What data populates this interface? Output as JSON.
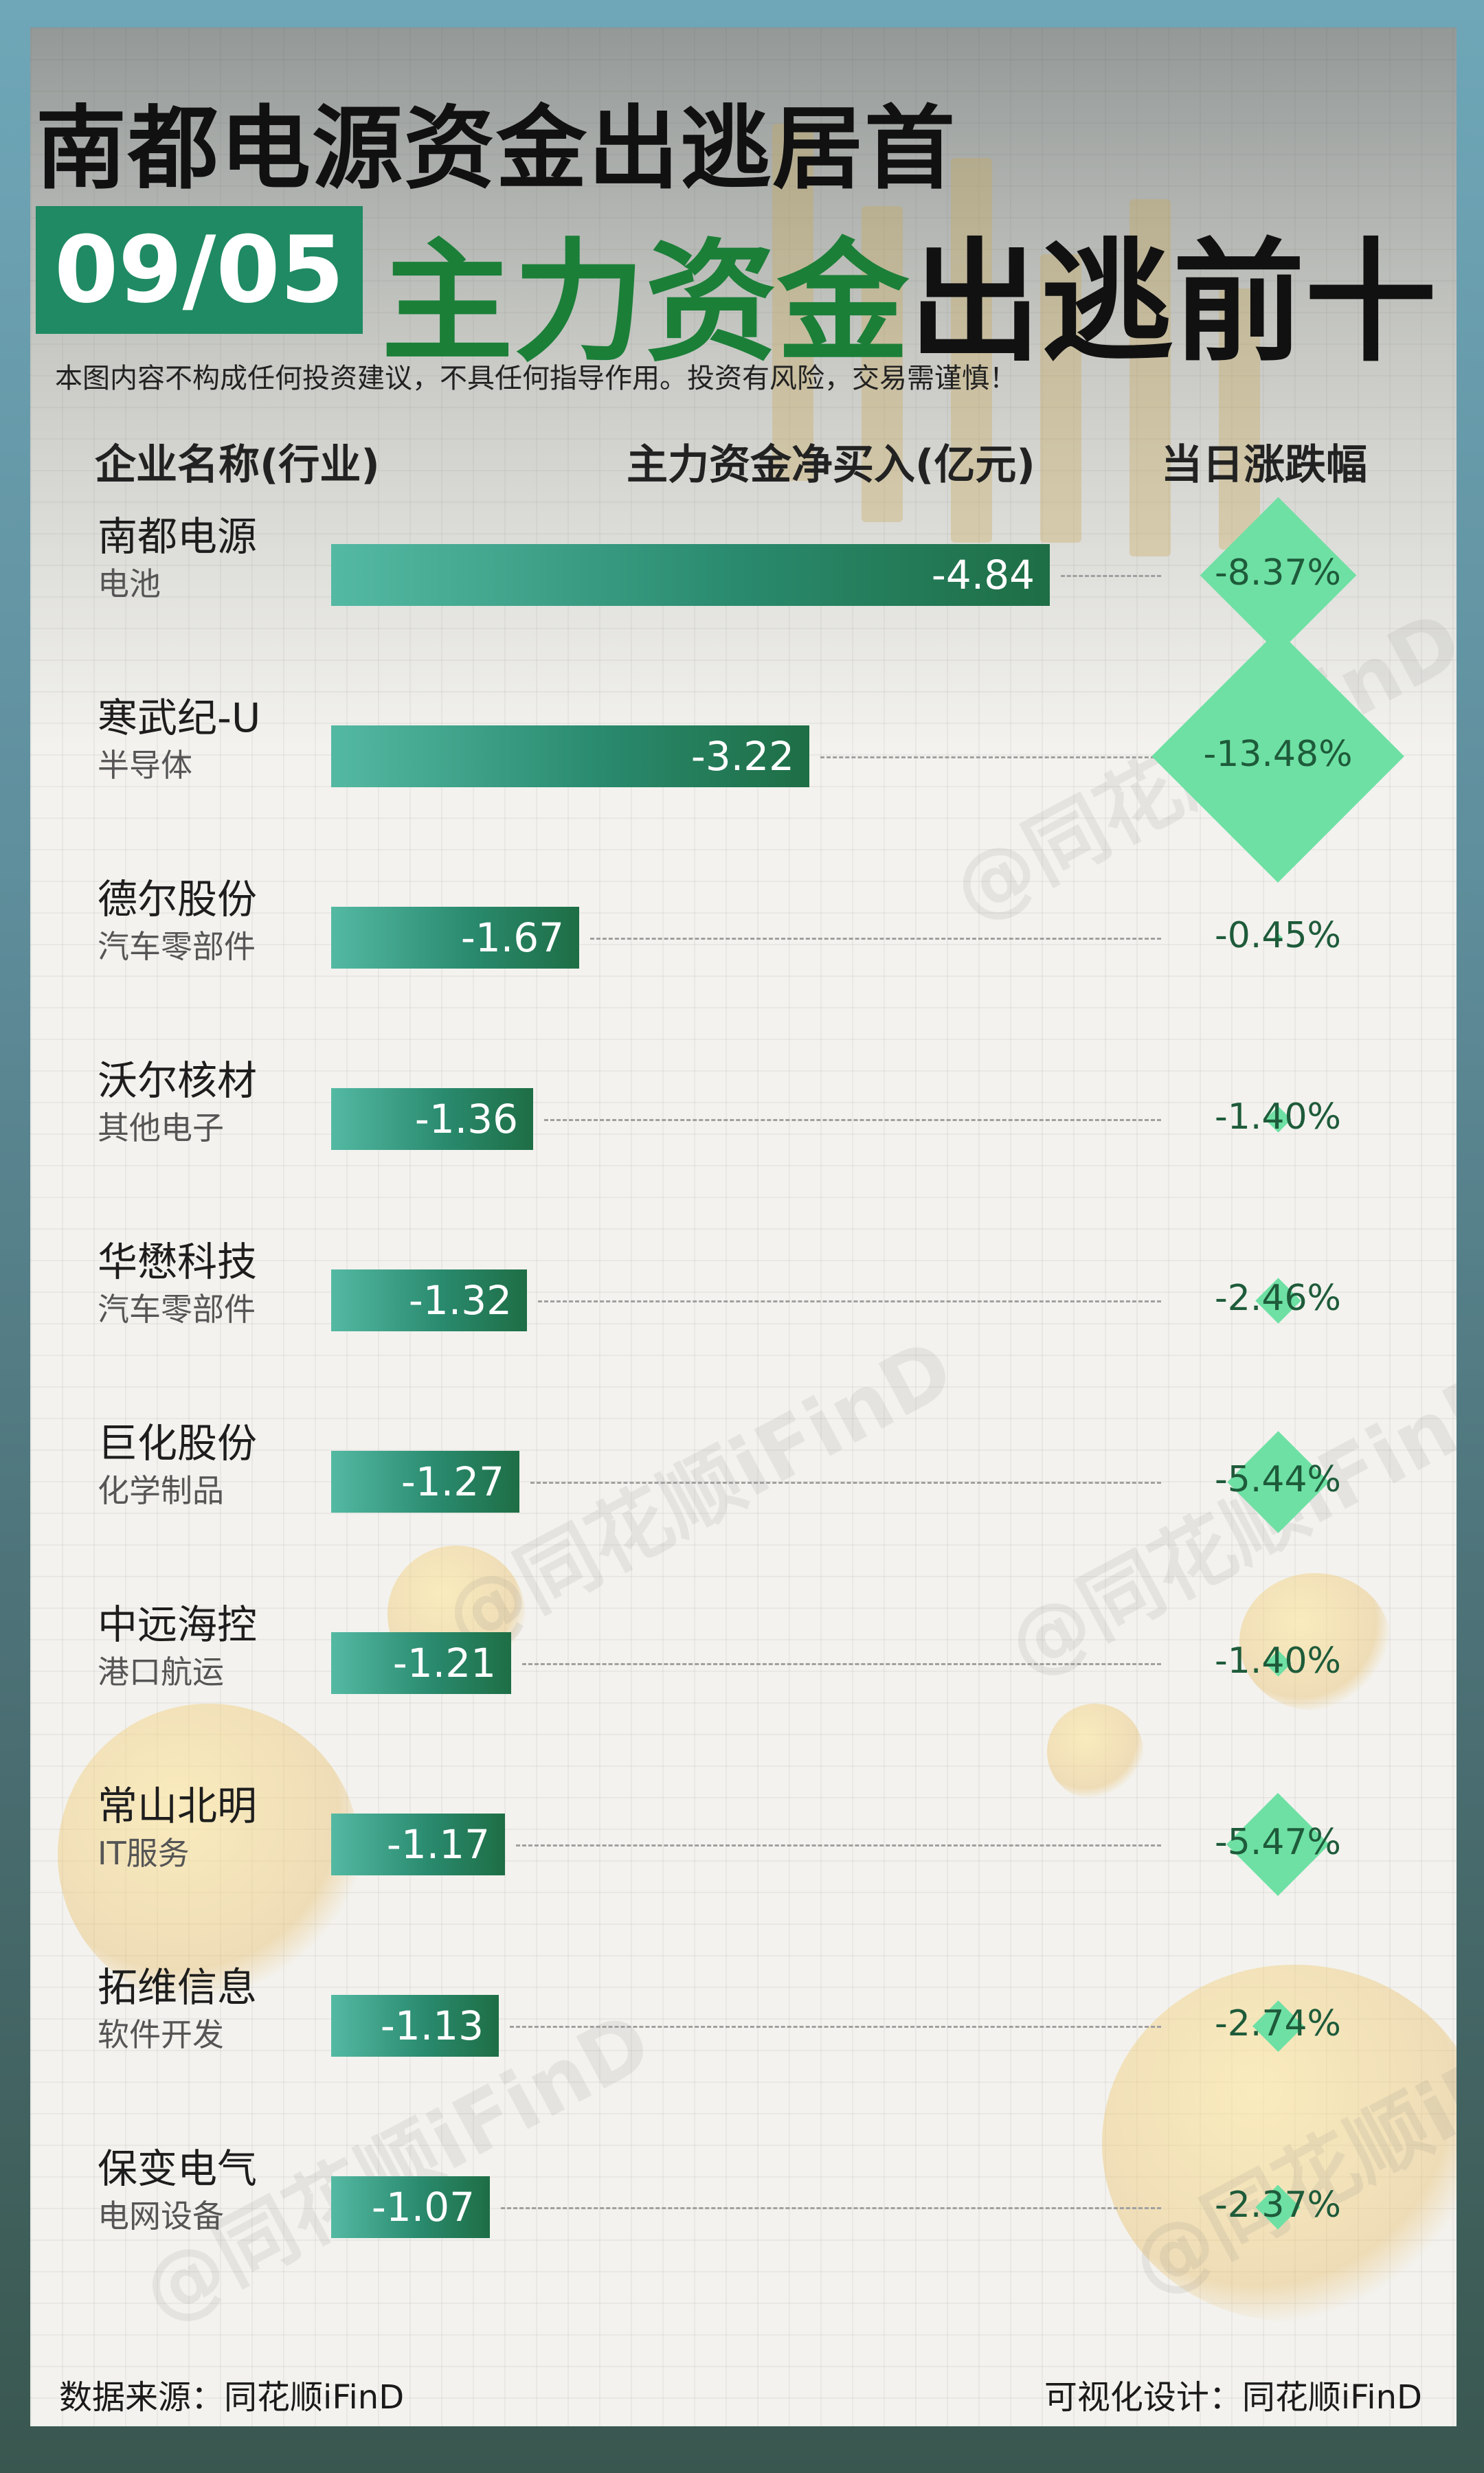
{
  "header": {
    "title": "南都电源资金出逃居首",
    "date": "09/05",
    "subtitle_green": "主力资金",
    "subtitle_dark": "出逃前十",
    "disclaimer": "本图内容不构成任何投资建议，不具任何指导作用。投资有风险，交易需谨慎！"
  },
  "columns": {
    "company": "企业名称(行业)",
    "net_inflow": "主力资金净买入(亿元)",
    "change": "当日涨跌幅"
  },
  "watermark": "@同花顺iFinD",
  "footer": {
    "source": "数据来源：同花顺iFinD",
    "design": "可视化设计：同花顺iFinD"
  },
  "colors": {
    "accent_green": "#1b7f38",
    "date_bg": "#1f8a63",
    "bar_start": "#54b9a3",
    "bar_end": "#1e6e45",
    "diamond": "#6ee0a4"
  },
  "chart_data": {
    "type": "bar",
    "orientation": "horizontal",
    "title": "主力资金出逃前十",
    "xlabel": "主力资金净买入(亿元)",
    "ylabel": "企业名称(行业)",
    "xlim": [
      0,
      -4.84
    ],
    "categories": [
      "南都电源",
      "寒武纪-U",
      "德尔股份",
      "沃尔核材",
      "华懋科技",
      "巨化股份",
      "中远海控",
      "常山北明",
      "拓维信息",
      "保变电气"
    ],
    "rows": [
      {
        "name": "南都电源",
        "industry": "电池",
        "net_inflow": "-4.84",
        "value": -4.84,
        "change": "-8.37%",
        "change_value": -8.37
      },
      {
        "name": "寒武纪-U",
        "industry": "半导体",
        "net_inflow": "-3.22",
        "value": -3.22,
        "change": "-13.48%",
        "change_value": -13.48
      },
      {
        "name": "德尔股份",
        "industry": "汽车零部件",
        "net_inflow": "-1.67",
        "value": -1.67,
        "change": "-0.45%",
        "change_value": -0.45
      },
      {
        "name": "沃尔核材",
        "industry": "其他电子",
        "net_inflow": "-1.36",
        "value": -1.36,
        "change": "-1.40%",
        "change_value": -1.4
      },
      {
        "name": "华懋科技",
        "industry": "汽车零部件",
        "net_inflow": "-1.32",
        "value": -1.32,
        "change": "-2.46%",
        "change_value": -2.46
      },
      {
        "name": "巨化股份",
        "industry": "化学制品",
        "net_inflow": "-1.27",
        "value": -1.27,
        "change": "-5.44%",
        "change_value": -5.44
      },
      {
        "name": "中远海控",
        "industry": "港口航运",
        "net_inflow": "-1.21",
        "value": -1.21,
        "change": "-1.40%",
        "change_value": -1.4
      },
      {
        "name": "常山北明",
        "industry": "IT服务",
        "net_inflow": "-1.17",
        "value": -1.17,
        "change": "-5.47%",
        "change_value": -5.47
      },
      {
        "name": "拓维信息",
        "industry": "软件开发",
        "net_inflow": "-1.13",
        "value": -1.13,
        "change": "-2.74%",
        "change_value": -2.74
      },
      {
        "name": "保变电气",
        "industry": "电网设备",
        "net_inflow": "-1.07",
        "value": -1.07,
        "change": "-2.37%",
        "change_value": -2.37
      }
    ]
  }
}
